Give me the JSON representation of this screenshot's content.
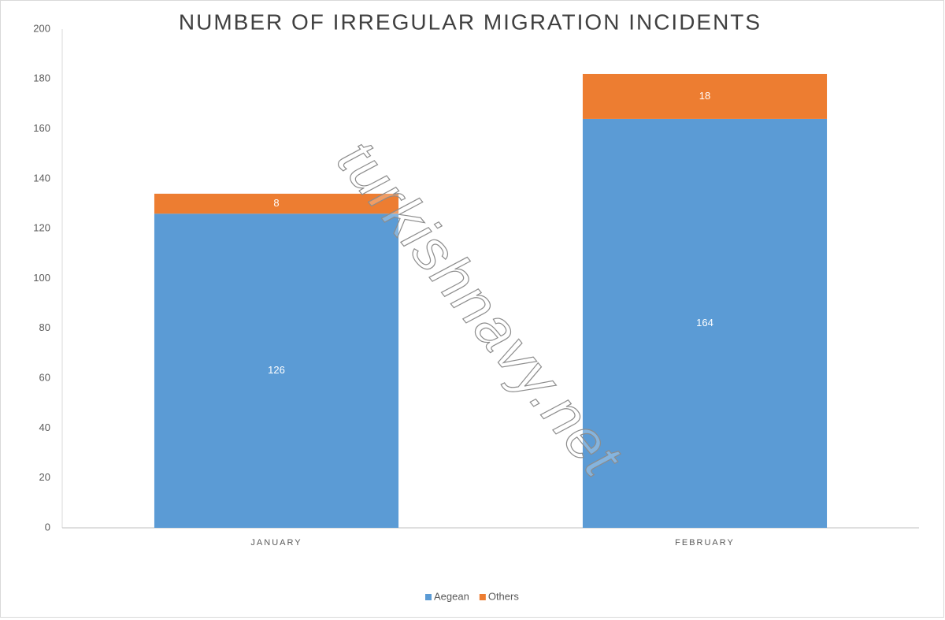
{
  "chart_data": {
    "type": "stacked_bar",
    "title": "NUMBER OF IRREGULAR MIGRATION INCIDENTS",
    "categories": [
      "JANUARY",
      "FEBRUARY"
    ],
    "series": [
      {
        "name": "Aegean",
        "color": "#5b9bd5",
        "values": [
          126,
          164
        ]
      },
      {
        "name": "Others",
        "color": "#ed7d31",
        "values": [
          8,
          18
        ]
      }
    ],
    "ylim": [
      0,
      200
    ],
    "yticks": [
      0,
      20,
      40,
      60,
      80,
      100,
      120,
      140,
      160,
      180,
      200
    ],
    "grid": false,
    "legend": "bottom",
    "watermark": "turkishnavy.net"
  }
}
